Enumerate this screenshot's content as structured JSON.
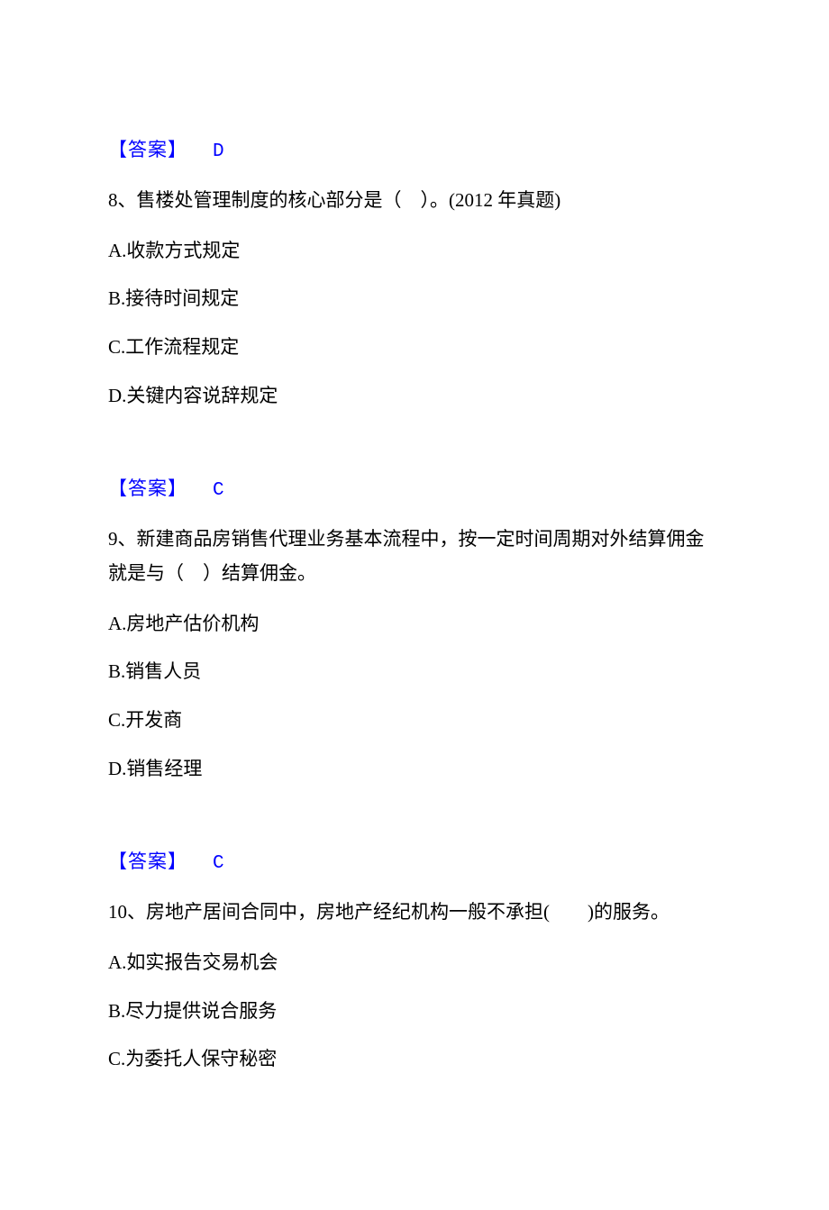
{
  "colors": {
    "answer_text": "#0000ff",
    "body_text": "#000000",
    "background": "#ffffff"
  },
  "typography": {
    "body_font": "SimSun",
    "body_fontsize": 21,
    "answer_letter_font": "Courier New",
    "line_height": 1.8
  },
  "answer_7": {
    "label": "【答案】",
    "letter": "D"
  },
  "question_8": {
    "text": "8、售楼处管理制度的核心部分是（　）。(2012 年真题)",
    "option_a": "A.收款方式规定",
    "option_b": "B.接待时间规定",
    "option_c": "C.工作流程规定",
    "option_d": "D.关键内容说辞规定"
  },
  "answer_8": {
    "label": "【答案】",
    "letter": "C"
  },
  "question_9": {
    "text": "9、新建商品房销售代理业务基本流程中，按一定时间周期对外结算佣金就是与（　）结算佣金。",
    "option_a": "A.房地产估价机构",
    "option_b": "B.销售人员",
    "option_c": "C.开发商",
    "option_d": "D.销售经理"
  },
  "answer_9": {
    "label": "【答案】",
    "letter": "C"
  },
  "question_10": {
    "text": "10、房地产居间合同中，房地产经纪机构一般不承担(　　)的服务。",
    "option_a": "A.如实报告交易机会",
    "option_b": "B.尽力提供说合服务",
    "option_c": "C.为委托人保守秘密"
  }
}
